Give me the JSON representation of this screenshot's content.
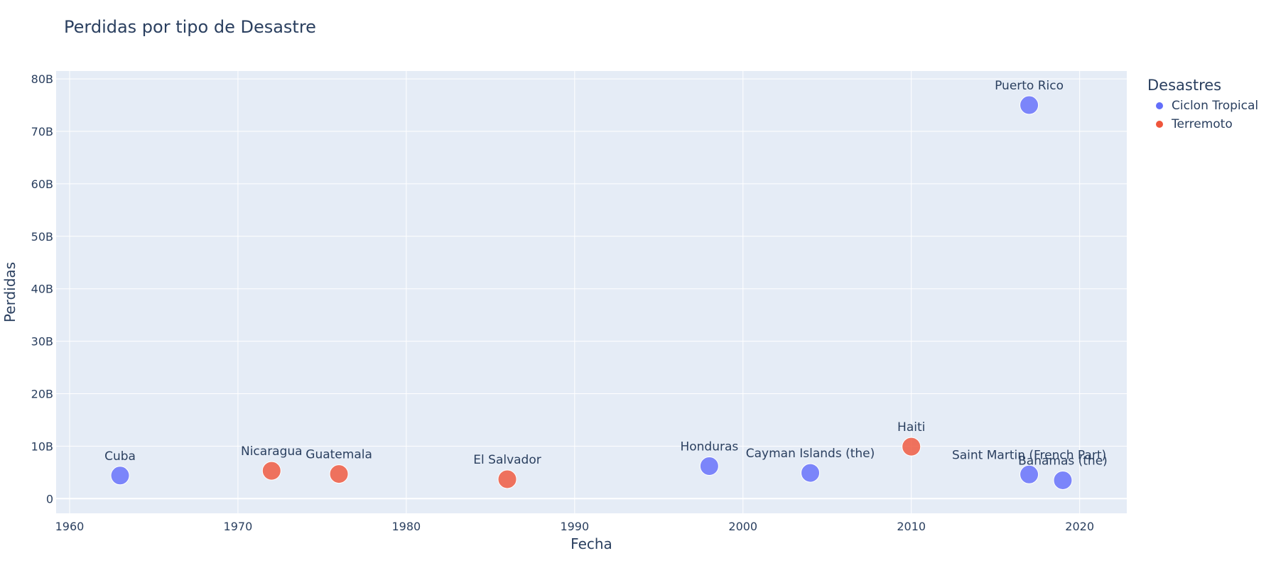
{
  "chart_data": {
    "type": "scatter",
    "title": "Perdidas por tipo de Desastre",
    "xlabel": "Fecha",
    "ylabel": "Perdidas",
    "xlim": [
      1959.2,
      2022.8
    ],
    "ylim": [
      -2.8,
      81.5
    ],
    "x_ticks": [
      1960,
      1970,
      1980,
      1990,
      2000,
      2010,
      2020
    ],
    "y_ticks": [
      0,
      10,
      20,
      30,
      40,
      50,
      60,
      70,
      80
    ],
    "y_tick_labels": [
      "0",
      "10B",
      "20B",
      "30B",
      "40B",
      "50B",
      "60B",
      "70B",
      "80B"
    ],
    "y_unit": "billions",
    "grid": true,
    "legend": {
      "title": "Desastres",
      "position": "top-right"
    },
    "series": [
      {
        "name": "Ciclon Tropical",
        "color": "#636efa",
        "points": [
          {
            "x": 1963,
            "y": 4.4,
            "label": "Cuba"
          },
          {
            "x": 1998,
            "y": 6.2,
            "label": "Honduras"
          },
          {
            "x": 2004,
            "y": 4.9,
            "label": "Cayman Islands (the)"
          },
          {
            "x": 2017,
            "y": 75.0,
            "label": "Puerto Rico"
          },
          {
            "x": 2017,
            "y": 4.6,
            "label": "Saint Martin (French Part)"
          },
          {
            "x": 2019,
            "y": 3.5,
            "label": "Bahamas (the)"
          }
        ]
      },
      {
        "name": "Terremoto",
        "color": "#ef553b",
        "points": [
          {
            "x": 1972,
            "y": 5.3,
            "label": "Nicaragua"
          },
          {
            "x": 1976,
            "y": 4.7,
            "label": "Guatemala"
          },
          {
            "x": 1986,
            "y": 3.7,
            "label": "El Salvador"
          },
          {
            "x": 2010,
            "y": 9.9,
            "label": "Haiti"
          }
        ]
      }
    ]
  }
}
